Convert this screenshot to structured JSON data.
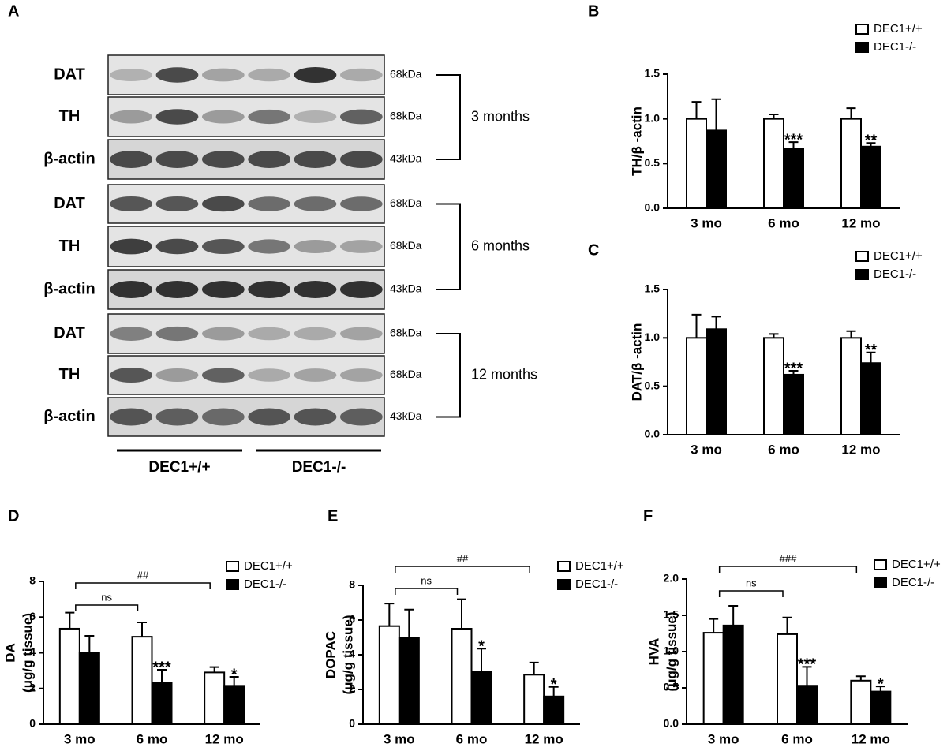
{
  "panel_a": {
    "label": "A",
    "blocks": [
      {
        "period": "3 months",
        "rows": [
          {
            "protein": "DAT",
            "size": "68kDa"
          },
          {
            "protein": "TH",
            "size": "68kDa"
          },
          {
            "protein": "β-actin",
            "size": "43kDa"
          }
        ]
      },
      {
        "period": "6 months",
        "rows": [
          {
            "protein": "DAT",
            "size": "68kDa"
          },
          {
            "protein": "TH",
            "size": "68kDa"
          },
          {
            "protein": "β-actin",
            "size": "43kDa"
          }
        ]
      },
      {
        "period": "12 months",
        "rows": [
          {
            "protein": "DAT",
            "size": "68kDa"
          },
          {
            "protein": "TH",
            "size": "68kDa"
          },
          {
            "protein": "β-actin",
            "size": "43kDa"
          }
        ]
      }
    ],
    "groups": [
      "DEC1+/+",
      "DEC1-/-"
    ]
  },
  "chart_data": [
    {
      "type": "bar",
      "panel": "B",
      "ylabel": [
        "TH/β -actin"
      ],
      "categories": [
        "3 mo",
        "6 mo",
        "12 mo"
      ],
      "ylim": [
        0,
        1.5
      ],
      "yticks": [
        {
          "value": 0,
          "label": "0.0"
        },
        {
          "value": 0.5,
          "label": "0.5"
        },
        {
          "value": 1,
          "label": "1.0"
        },
        {
          "value": 1.5,
          "label": "1.5"
        }
      ],
      "series": [
        {
          "name": "DEC1+/+",
          "color": "#ffffff",
          "values": [
            1.0,
            1.0,
            1.0
          ],
          "errors": [
            0.19,
            0.05,
            0.12
          ]
        },
        {
          "name": "DEC1-/-",
          "color": "#000000",
          "values": [
            0.87,
            0.67,
            0.69
          ],
          "errors": [
            0.35,
            0.07,
            0.04
          ],
          "significance": [
            null,
            "***",
            "**"
          ]
        }
      ]
    },
    {
      "type": "bar",
      "panel": "C",
      "ylabel": [
        "DAT/β -actin"
      ],
      "categories": [
        "3 mo",
        "6 mo",
        "12 mo"
      ],
      "ylim": [
        0,
        1.5
      ],
      "yticks": [
        {
          "value": 0,
          "label": "0.0"
        },
        {
          "value": 0.5,
          "label": "0.5"
        },
        {
          "value": 1,
          "label": "1.0"
        },
        {
          "value": 1.5,
          "label": "1.5"
        }
      ],
      "series": [
        {
          "name": "DEC1+/+",
          "color": "#ffffff",
          "values": [
            1.0,
            1.0,
            1.0
          ],
          "errors": [
            0.24,
            0.04,
            0.07
          ]
        },
        {
          "name": "DEC1-/-",
          "color": "#000000",
          "values": [
            1.09,
            0.62,
            0.74
          ],
          "errors": [
            0.13,
            0.04,
            0.11
          ],
          "significance": [
            null,
            "***",
            "**"
          ]
        }
      ]
    },
    {
      "type": "bar",
      "panel": "D",
      "ylabel": [
        "DA",
        "(μg/g tissue)"
      ],
      "categories": [
        "3 mo",
        "6 mo",
        "12 mo"
      ],
      "ylim": [
        0,
        8
      ],
      "yticks": [
        0,
        2,
        4,
        6,
        8
      ],
      "series": [
        {
          "name": "DEC1+/+",
          "color": "#ffffff",
          "values": [
            5.35,
            4.9,
            2.9
          ],
          "errors": [
            0.9,
            0.8,
            0.3
          ]
        },
        {
          "name": "DEC1-/-",
          "color": "#000000",
          "values": [
            4.0,
            2.3,
            2.15
          ],
          "errors": [
            0.95,
            0.75,
            0.5
          ],
          "significance": [
            null,
            "***",
            "*"
          ]
        }
      ],
      "comparisons": [
        {
          "from": "3 mo",
          "to": "6 mo",
          "label": "ns"
        },
        {
          "from": "3 mo",
          "to": "12 mo",
          "label": "##"
        }
      ]
    },
    {
      "type": "bar",
      "panel": "E",
      "ylabel": [
        "DOPAC",
        "(μg/g tissue)"
      ],
      "categories": [
        "3 mo",
        "6 mo",
        "12 mo"
      ],
      "ylim": [
        0,
        8
      ],
      "yticks": [
        0,
        2,
        4,
        6,
        8
      ],
      "series": [
        {
          "name": "DEC1+/+",
          "color": "#ffffff",
          "values": [
            5.65,
            5.5,
            2.85
          ],
          "errors": [
            1.3,
            1.7,
            0.7
          ]
        },
        {
          "name": "DEC1-/-",
          "color": "#000000",
          "values": [
            5.0,
            3.0,
            1.6
          ],
          "errors": [
            1.6,
            1.35,
            0.55
          ],
          "significance": [
            null,
            "*",
            "*"
          ]
        }
      ],
      "comparisons": [
        {
          "from": "3 mo",
          "to": "6 mo",
          "label": "ns"
        },
        {
          "from": "3 mo",
          "to": "12 mo",
          "label": "##"
        }
      ]
    },
    {
      "type": "bar",
      "panel": "F",
      "ylabel": [
        "HVA",
        "(μg/g tissue)"
      ],
      "categories": [
        "3 mo",
        "6 mo",
        "12 mo"
      ],
      "ylim": [
        0,
        2
      ],
      "yticks": [
        {
          "value": 0,
          "label": "0.0"
        },
        {
          "value": 0.5,
          "label": "0.5"
        },
        {
          "value": 1,
          "label": "1.0"
        },
        {
          "value": 1.5,
          "label": "1.5"
        },
        {
          "value": 2,
          "label": "2.0"
        }
      ],
      "series": [
        {
          "name": "DEC1+/+",
          "color": "#ffffff",
          "values": [
            1.26,
            1.24,
            0.6
          ],
          "errors": [
            0.19,
            0.23,
            0.06
          ]
        },
        {
          "name": "DEC1-/-",
          "color": "#000000",
          "values": [
            1.36,
            0.53,
            0.45
          ],
          "errors": [
            0.27,
            0.26,
            0.07
          ],
          "significance": [
            null,
            "***",
            "*"
          ]
        }
      ],
      "comparisons": [
        {
          "from": "3 mo",
          "to": "6 mo",
          "label": "ns"
        },
        {
          "from": "3 mo",
          "to": "12 mo",
          "label": "###"
        }
      ]
    }
  ]
}
